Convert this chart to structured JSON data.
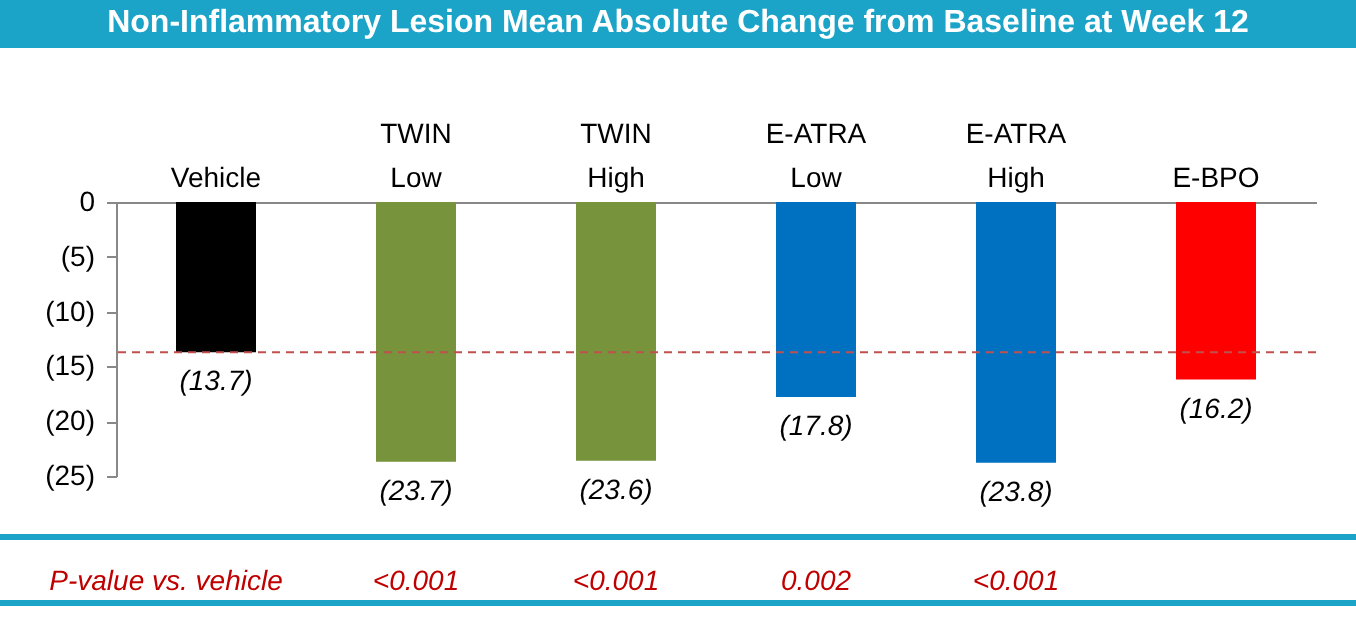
{
  "chart_data": {
    "type": "bar",
    "title": "Non-Inflammatory Lesion Mean Absolute Change from Baseline at Week 12",
    "categories": [
      "Vehicle",
      "TWIN Low",
      "TWIN High",
      "E-ATRA Low",
      "E-ATRA High",
      "E-BPO"
    ],
    "values": [
      -13.7,
      -23.7,
      -23.6,
      -17.8,
      -23.8,
      -16.2
    ],
    "colors": [
      "#000000",
      "#77933c",
      "#77933c",
      "#0070c0",
      "#0070c0",
      "#ff0000"
    ],
    "value_labels": [
      "(13.7)",
      "(23.7)",
      "(23.6)",
      "(17.8)",
      "(23.8)",
      "(16.2)"
    ],
    "ylim": [
      -25,
      0
    ],
    "yticks": [
      {
        "value": 0,
        "label": "0"
      },
      {
        "value": -5,
        "label": "(5)"
      },
      {
        "value": -10,
        "label": "(10)"
      },
      {
        "value": -15,
        "label": "(15)"
      },
      {
        "value": -20,
        "label": "(20)"
      },
      {
        "value": -25,
        "label": "(25)"
      }
    ],
    "ref_lines": [
      {
        "axis": "y",
        "value": -13.7,
        "color": "#c0504d",
        "line_style": "dashed"
      }
    ],
    "annotations": [
      "P-value vs. vehicle",
      "<0.001",
      "<0.001",
      "0.002",
      "<0.001"
    ],
    "grid": false
  }
}
